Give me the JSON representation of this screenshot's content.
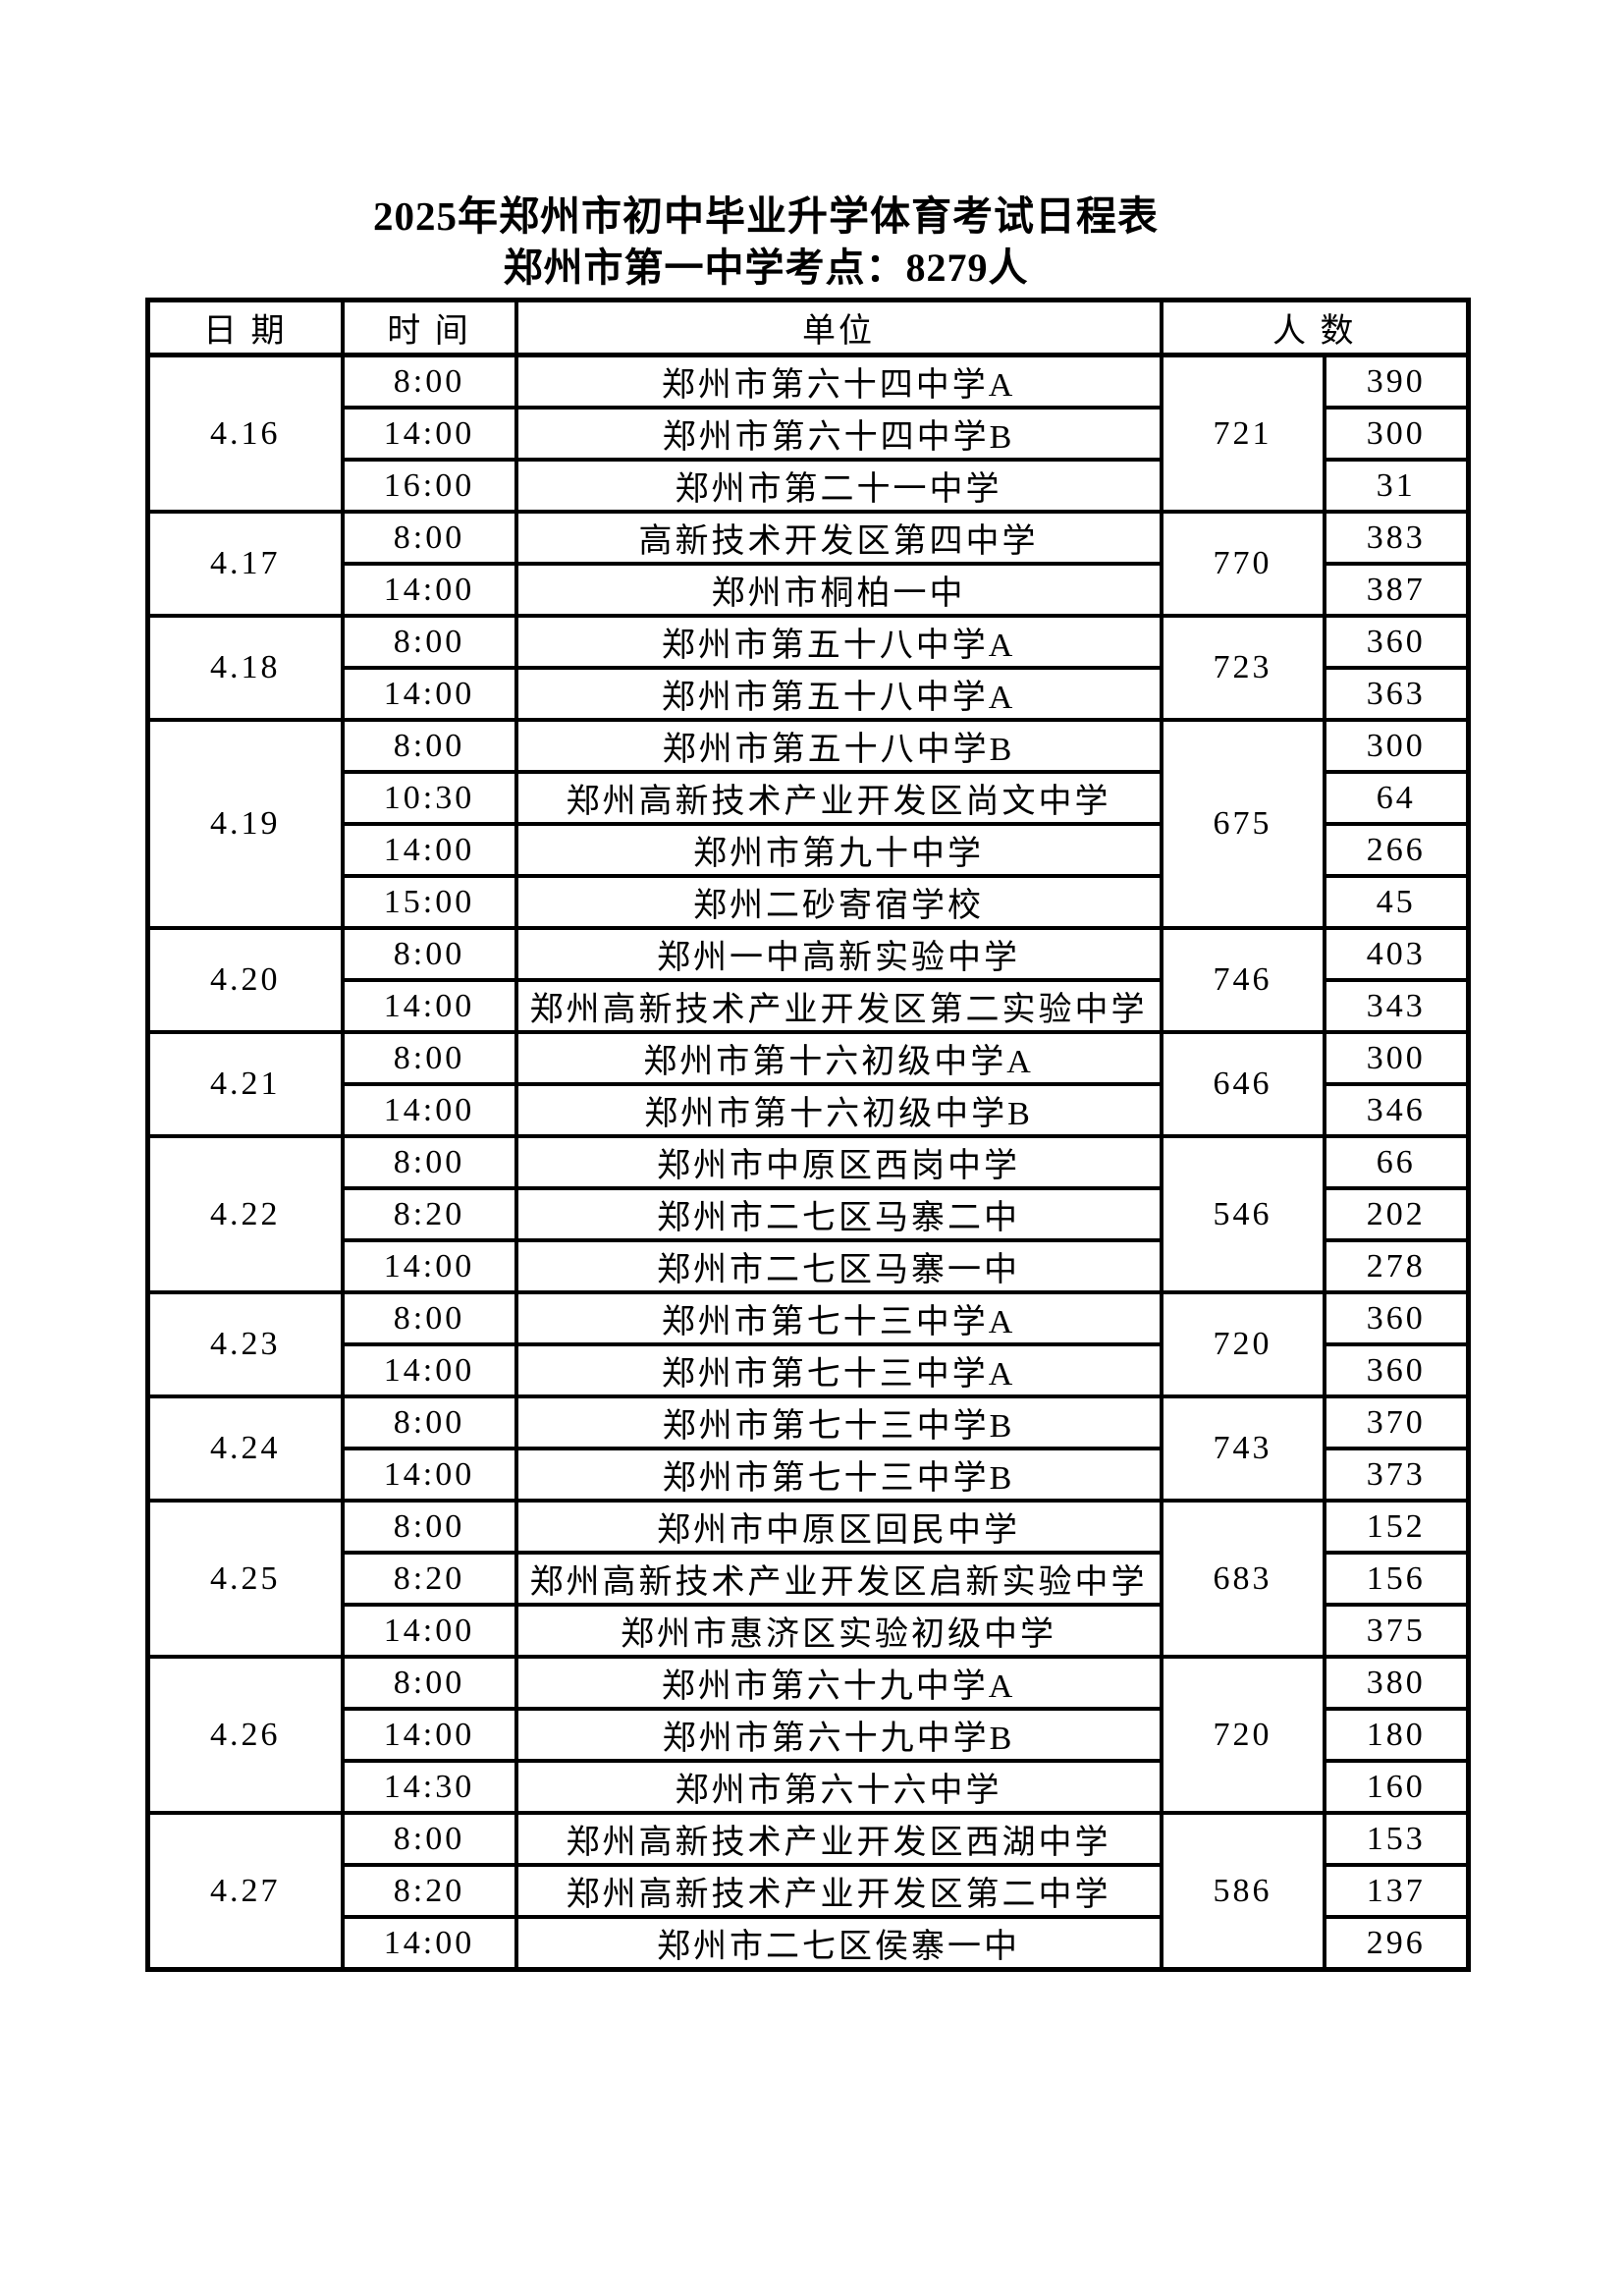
{
  "page": {
    "title": "2025年郑州市初中毕业升学体育考试日程表",
    "subtitle": "郑州市第一中学考点：8279人"
  },
  "table": {
    "headers": {
      "date": "日 期",
      "time": "时 间",
      "unit": "单位",
      "count": "人 数"
    },
    "groups": [
      {
        "date": "4.16",
        "total": "721",
        "sessions": [
          {
            "time": "8:00",
            "unit": "郑州市第六十四中学A",
            "count": "390"
          },
          {
            "time": "14:00",
            "unit": "郑州市第六十四中学B",
            "count": "300"
          },
          {
            "time": "16:00",
            "unit": "郑州市第二十一中学",
            "count": "31"
          }
        ]
      },
      {
        "date": "4.17",
        "total": "770",
        "sessions": [
          {
            "time": "8:00",
            "unit": "高新技术开发区第四中学",
            "count": "383"
          },
          {
            "time": "14:00",
            "unit": "郑州市桐柏一中",
            "count": "387"
          }
        ]
      },
      {
        "date": "4.18",
        "total": "723",
        "sessions": [
          {
            "time": "8:00",
            "unit": "郑州市第五十八中学A",
            "count": "360"
          },
          {
            "time": "14:00",
            "unit": "郑州市第五十八中学A",
            "count": "363"
          }
        ]
      },
      {
        "date": "4.19",
        "total": "675",
        "sessions": [
          {
            "time": "8:00",
            "unit": "郑州市第五十八中学B",
            "count": "300"
          },
          {
            "time": "10:30",
            "unit": "郑州高新技术产业开发区尚文中学",
            "count": "64"
          },
          {
            "time": "14:00",
            "unit": "郑州市第九十中学",
            "count": "266"
          },
          {
            "time": "15:00",
            "unit": "郑州二砂寄宿学校",
            "count": "45"
          }
        ]
      },
      {
        "date": "4.20",
        "total": "746",
        "sessions": [
          {
            "time": "8:00",
            "unit": "郑州一中高新实验中学",
            "count": "403"
          },
          {
            "time": "14:00",
            "unit": "郑州高新技术产业开发区第二实验中学",
            "count": "343"
          }
        ]
      },
      {
        "date": "4.21",
        "total": "646",
        "sessions": [
          {
            "time": "8:00",
            "unit": "郑州市第十六初级中学A",
            "count": "300"
          },
          {
            "time": "14:00",
            "unit": "郑州市第十六初级中学B",
            "count": "346"
          }
        ]
      },
      {
        "date": "4.22",
        "total": "546",
        "sessions": [
          {
            "time": "8:00",
            "unit": "郑州市中原区西岗中学",
            "count": "66"
          },
          {
            "time": "8:20",
            "unit": "郑州市二七区马寨二中",
            "count": "202"
          },
          {
            "time": "14:00",
            "unit": "郑州市二七区马寨一中",
            "count": "278"
          }
        ]
      },
      {
        "date": "4.23",
        "total": "720",
        "sessions": [
          {
            "time": "8:00",
            "unit": "郑州市第七十三中学A",
            "count": "360"
          },
          {
            "time": "14:00",
            "unit": "郑州市第七十三中学A",
            "count": "360"
          }
        ]
      },
      {
        "date": "4.24",
        "total": "743",
        "sessions": [
          {
            "time": "8:00",
            "unit": "郑州市第七十三中学B",
            "count": "370"
          },
          {
            "time": "14:00",
            "unit": "郑州市第七十三中学B",
            "count": "373"
          }
        ]
      },
      {
        "date": "4.25",
        "total": "683",
        "sessions": [
          {
            "time": "8:00",
            "unit": "郑州市中原区回民中学",
            "count": "152"
          },
          {
            "time": "8:20",
            "unit": "郑州高新技术产业开发区启新实验中学",
            "count": "156"
          },
          {
            "time": "14:00",
            "unit": "郑州市惠济区实验初级中学",
            "count": "375"
          }
        ]
      },
      {
        "date": "4.26",
        "total": "720",
        "sessions": [
          {
            "time": "8:00",
            "unit": "郑州市第六十九中学A",
            "count": "380"
          },
          {
            "time": "14:00",
            "unit": "郑州市第六十九中学B",
            "count": "180"
          },
          {
            "time": "14:30",
            "unit": "郑州市第六十六中学",
            "count": "160"
          }
        ]
      },
      {
        "date": "4.27",
        "total": "586",
        "sessions": [
          {
            "time": "8:00",
            "unit": "郑州高新技术产业开发区西湖中学",
            "count": "153"
          },
          {
            "time": "8:20",
            "unit": "郑州高新技术产业开发区第二中学",
            "count": "137"
          },
          {
            "time": "14:00",
            "unit": "郑州市二七区侯寨一中",
            "count": "296"
          }
        ]
      }
    ]
  }
}
